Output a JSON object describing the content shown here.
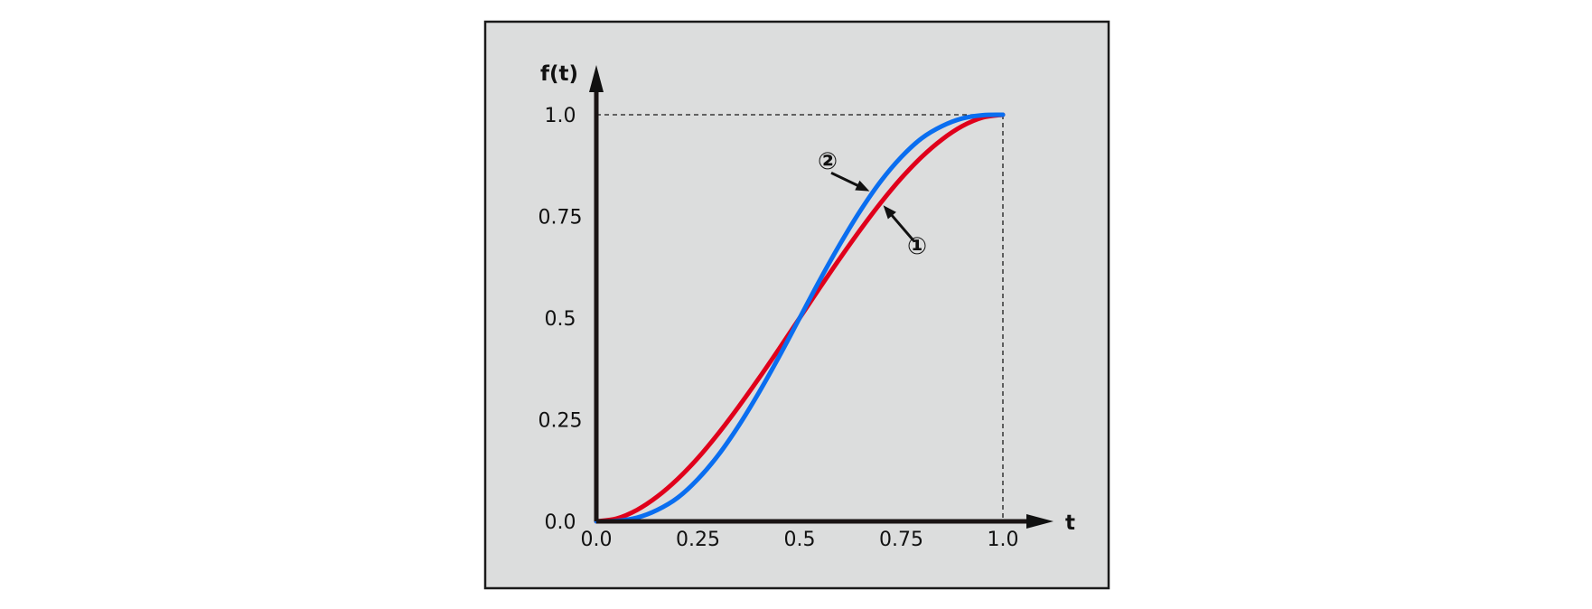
{
  "chart_data": {
    "type": "line",
    "xlabel": "t",
    "ylabel": "f(t)",
    "xlim": [
      0,
      1
    ],
    "ylim": [
      0,
      1
    ],
    "x_ticks": [
      "0.0",
      "0.25",
      "0.5",
      "0.75",
      "1.0"
    ],
    "y_ticks": [
      "0.0",
      "0.25",
      "0.5",
      "0.75",
      "1.0"
    ],
    "grid": false,
    "reference_lines": {
      "y": 1.0,
      "x": 1.0
    },
    "series": [
      {
        "name": "①",
        "color": "#e0001b",
        "x": [
          0,
          0.05,
          0.1,
          0.15,
          0.2,
          0.25,
          0.3,
          0.35,
          0.4,
          0.45,
          0.5,
          0.55,
          0.6,
          0.65,
          0.7,
          0.75,
          0.8,
          0.85,
          0.9,
          0.95,
          1.0
        ],
        "y": [
          0,
          0.007,
          0.028,
          0.061,
          0.104,
          0.156,
          0.216,
          0.282,
          0.352,
          0.425,
          0.5,
          0.575,
          0.648,
          0.718,
          0.784,
          0.844,
          0.896,
          0.939,
          0.972,
          0.993,
          1.0
        ]
      },
      {
        "name": "②",
        "color": "#0a6ef0",
        "x": [
          0,
          0.05,
          0.1,
          0.15,
          0.2,
          0.25,
          0.3,
          0.35,
          0.4,
          0.45,
          0.5,
          0.55,
          0.6,
          0.65,
          0.7,
          0.75,
          0.8,
          0.85,
          0.9,
          0.95,
          1.0
        ],
        "y": [
          0,
          0.001,
          0.009,
          0.028,
          0.058,
          0.104,
          0.163,
          0.235,
          0.317,
          0.406,
          0.5,
          0.594,
          0.683,
          0.765,
          0.837,
          0.896,
          0.942,
          0.972,
          0.991,
          0.999,
          1.0
        ]
      }
    ],
    "annotations": [
      {
        "label": "①",
        "series": "①",
        "at_x": 0.7
      },
      {
        "label": "②",
        "series": "②",
        "at_x": 0.68
      }
    ]
  }
}
